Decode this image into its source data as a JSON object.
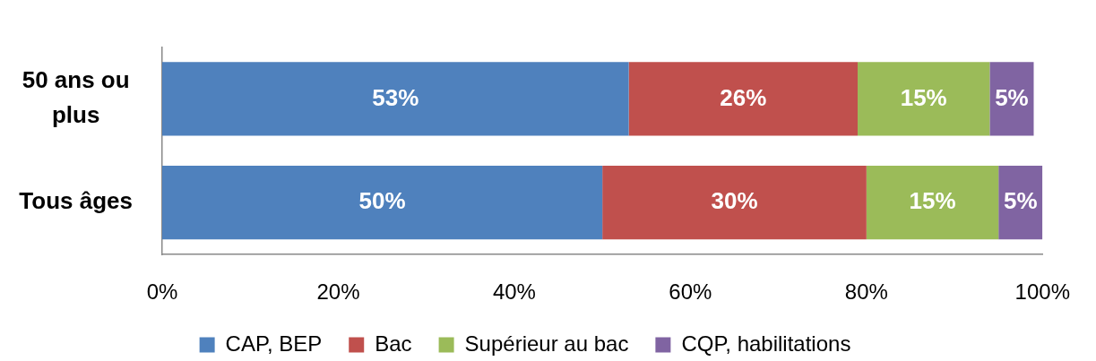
{
  "chart_data": {
    "type": "bar",
    "orientation": "horizontal",
    "stacked": true,
    "categories": [
      "50 ans ou plus",
      "Tous âges"
    ],
    "series": [
      {
        "name": "CAP, BEP",
        "color": "#4f81bd",
        "values": [
          53,
          50
        ],
        "value_labels": [
          "53%",
          "50%"
        ]
      },
      {
        "name": "Bac",
        "color": "#c0504d",
        "values": [
          26,
          30
        ],
        "value_labels": [
          "26%",
          "30%"
        ]
      },
      {
        "name": "Supérieur au bac",
        "color": "#9bbb59",
        "values": [
          15,
          15
        ],
        "value_labels": [
          "15%",
          "15%"
        ]
      },
      {
        "name": "CQP, habilitations",
        "color": "#8064a2",
        "values": [
          5,
          5
        ],
        "value_labels": [
          "5%",
          "5%"
        ]
      }
    ],
    "xlim": [
      0,
      100
    ],
    "xticks": [
      {
        "value": 0,
        "label": "0%"
      },
      {
        "value": 20,
        "label": "20%"
      },
      {
        "value": 40,
        "label": "40%"
      },
      {
        "value": 60,
        "label": "60%"
      },
      {
        "value": 80,
        "label": "80%"
      },
      {
        "value": 100,
        "label": "100%"
      }
    ],
    "legend": "bottom"
  }
}
